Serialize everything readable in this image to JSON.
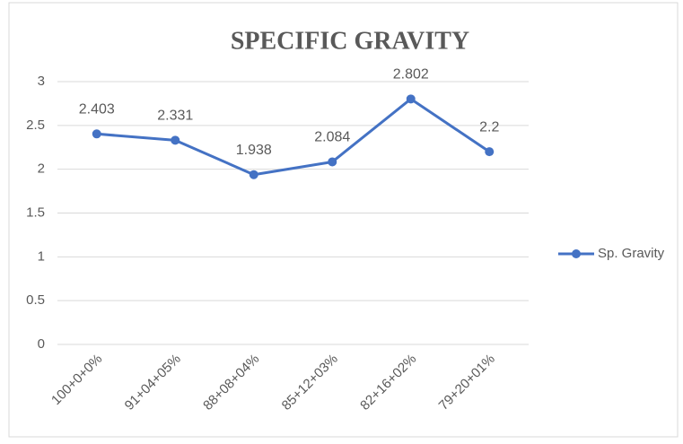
{
  "chart_data": {
    "type": "line",
    "title": "SPECIFIC GRAVITY",
    "categories": [
      "100+0+0%",
      "91+04+05%",
      "88+08+04%",
      "85+12+03%",
      "82+16+02%",
      "79+20+01%"
    ],
    "series": [
      {
        "name": "Sp. Gravity",
        "color": "#4472c4",
        "values": [
          2.403,
          2.331,
          1.938,
          2.084,
          2.802,
          2.2
        ]
      }
    ],
    "ylim": [
      0,
      3
    ],
    "yticks": [
      0,
      0.5,
      1,
      1.5,
      2,
      2.5,
      3
    ],
    "grid": true,
    "legend": "right"
  }
}
